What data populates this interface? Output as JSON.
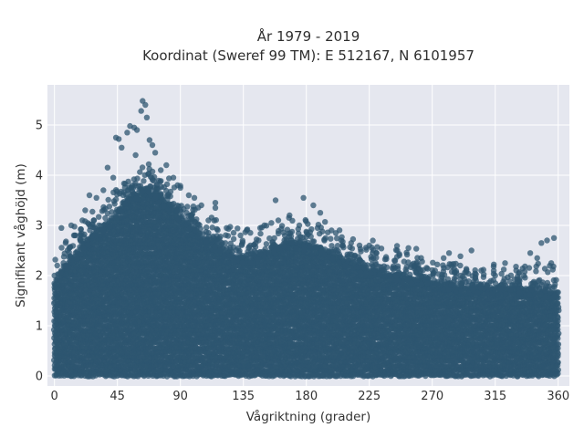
{
  "chart_data": {
    "type": "scatter",
    "title": "År 1979 - 2019",
    "subtitle": "Koordinat (Sweref 99 TM): E 512167, N 6101957",
    "xlabel": "Vågriktning (grader)",
    "ylabel": "Signifikant våghöjd (m)",
    "xlim": [
      -5,
      368
    ],
    "ylim": [
      -0.2,
      5.8
    ],
    "x_ticks": [
      0,
      45,
      90,
      135,
      180,
      225,
      270,
      315,
      360
    ],
    "y_ticks": [
      0,
      1,
      2,
      3,
      4,
      5
    ],
    "x_tick_labels": [
      "0",
      "45",
      "90",
      "135",
      "180",
      "225",
      "270",
      "315",
      "360"
    ],
    "y_tick_labels": [
      "0",
      "1",
      "2",
      "3",
      "4",
      "5"
    ],
    "grid": true,
    "background": "#e5e7ef",
    "marker_color": "#2e5570",
    "envelope": {
      "x": [
        0,
        10,
        20,
        30,
        40,
        45,
        50,
        55,
        60,
        65,
        70,
        80,
        90,
        100,
        110,
        120,
        130,
        140,
        150,
        160,
        170,
        180,
        190,
        200,
        210,
        220,
        230,
        240,
        250,
        260,
        270,
        280,
        290,
        300,
        310,
        320,
        330,
        340,
        350,
        360
      ],
      "ymax": [
        1.9,
        2.3,
        2.6,
        2.9,
        3.1,
        3.3,
        3.5,
        3.6,
        3.7,
        3.75,
        3.65,
        3.5,
        3.2,
        2.9,
        2.7,
        2.55,
        2.4,
        2.35,
        2.5,
        2.6,
        2.7,
        2.65,
        2.55,
        2.45,
        2.3,
        2.2,
        2.15,
        2.05,
        2.0,
        1.95,
        1.9,
        1.85,
        1.8,
        1.8,
        1.75,
        1.75,
        1.75,
        1.75,
        1.7,
        1.7
      ],
      "ymin": 0.02
    },
    "outliers": [
      {
        "x": 63,
        "y": 5.48
      },
      {
        "x": 65,
        "y": 5.4
      },
      {
        "x": 62,
        "y": 5.28
      },
      {
        "x": 66,
        "y": 5.15
      },
      {
        "x": 54,
        "y": 4.98
      },
      {
        "x": 57,
        "y": 4.95
      },
      {
        "x": 59,
        "y": 4.9
      },
      {
        "x": 52,
        "y": 4.85
      },
      {
        "x": 68,
        "y": 4.7
      },
      {
        "x": 46,
        "y": 4.72
      },
      {
        "x": 44,
        "y": 4.75
      },
      {
        "x": 70,
        "y": 4.6
      },
      {
        "x": 48,
        "y": 4.55
      },
      {
        "x": 72,
        "y": 4.45
      },
      {
        "x": 58,
        "y": 4.4
      },
      {
        "x": 80,
        "y": 4.2
      },
      {
        "x": 76,
        "y": 4.1
      },
      {
        "x": 38,
        "y": 4.15
      },
      {
        "x": 85,
        "y": 3.95
      },
      {
        "x": 42,
        "y": 3.95
      },
      {
        "x": 88,
        "y": 3.8
      },
      {
        "x": 90,
        "y": 3.75
      },
      {
        "x": 35,
        "y": 3.7
      },
      {
        "x": 96,
        "y": 3.6
      },
      {
        "x": 100,
        "y": 3.55
      },
      {
        "x": 30,
        "y": 3.55
      },
      {
        "x": 105,
        "y": 3.4
      },
      {
        "x": 115,
        "y": 3.45
      },
      {
        "x": 115,
        "y": 3.35
      },
      {
        "x": 22,
        "y": 3.3
      },
      {
        "x": 25,
        "y": 3.6
      },
      {
        "x": 110,
        "y": 3.1
      },
      {
        "x": 123,
        "y": 2.95
      },
      {
        "x": 20,
        "y": 3.1
      },
      {
        "x": 128,
        "y": 2.85
      },
      {
        "x": 133,
        "y": 2.8
      },
      {
        "x": 140,
        "y": 2.85
      },
      {
        "x": 140,
        "y": 2.6
      },
      {
        "x": 147,
        "y": 2.95
      },
      {
        "x": 150,
        "y": 3.0
      },
      {
        "x": 158,
        "y": 3.5
      },
      {
        "x": 155,
        "y": 3.05
      },
      {
        "x": 160,
        "y": 3.1
      },
      {
        "x": 168,
        "y": 3.2
      },
      {
        "x": 175,
        "y": 3.0
      },
      {
        "x": 178,
        "y": 3.55
      },
      {
        "x": 185,
        "y": 3.4
      },
      {
        "x": 190,
        "y": 3.25
      },
      {
        "x": 188,
        "y": 2.95
      },
      {
        "x": 198,
        "y": 2.9
      },
      {
        "x": 205,
        "y": 2.7
      },
      {
        "x": 212,
        "y": 2.65
      },
      {
        "x": 218,
        "y": 2.6
      },
      {
        "x": 225,
        "y": 2.6
      },
      {
        "x": 230,
        "y": 2.45
      },
      {
        "x": 245,
        "y": 2.5
      },
      {
        "x": 243,
        "y": 2.3
      },
      {
        "x": 253,
        "y": 2.55
      },
      {
        "x": 260,
        "y": 2.2
      },
      {
        "x": 272,
        "y": 2.1
      },
      {
        "x": 282,
        "y": 2.45
      },
      {
        "x": 290,
        "y": 2.2
      },
      {
        "x": 298,
        "y": 2.5
      },
      {
        "x": 305,
        "y": 2.1
      },
      {
        "x": 315,
        "y": 2.0
      },
      {
        "x": 322,
        "y": 2.25
      },
      {
        "x": 330,
        "y": 2.1
      },
      {
        "x": 340,
        "y": 2.45
      },
      {
        "x": 345,
        "y": 2.35
      },
      {
        "x": 348,
        "y": 2.65
      },
      {
        "x": 352,
        "y": 2.7
      },
      {
        "x": 357,
        "y": 2.75
      },
      {
        "x": 355,
        "y": 2.25
      },
      {
        "x": 5,
        "y": 2.95
      },
      {
        "x": 8,
        "y": 2.65
      },
      {
        "x": 12,
        "y": 3.0
      },
      {
        "x": 15,
        "y": 2.8
      },
      {
        "x": 2,
        "y": 2.2
      }
    ]
  }
}
